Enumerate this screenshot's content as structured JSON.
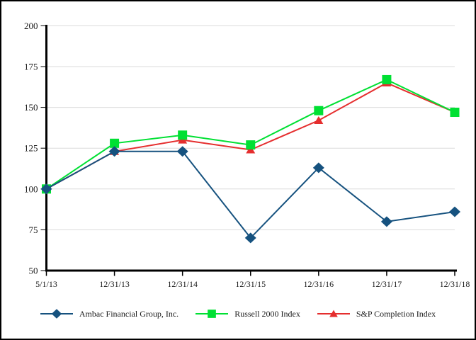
{
  "chart_data": {
    "type": "line",
    "title": "",
    "categories": [
      "5/1/13",
      "12/31/13",
      "12/31/14",
      "12/31/15",
      "12/31/16",
      "12/31/17",
      "12/31/18"
    ],
    "series": [
      {
        "name": "Ambac Financial Group, Inc.",
        "marker": "diamond",
        "color": "#16527F",
        "values": [
          100,
          123,
          123,
          70,
          113,
          80,
          86
        ]
      },
      {
        "name": "Russell 2000 Index",
        "marker": "square",
        "color": "#00E033",
        "values": [
          100,
          128,
          133,
          127,
          148,
          167,
          147
        ]
      },
      {
        "name": "S&P Completion Index",
        "marker": "triangle",
        "color": "#E52E2E",
        "values": [
          100,
          123,
          130,
          124,
          142,
          165,
          147
        ]
      }
    ],
    "y_axis": {
      "min": 50,
      "max": 200,
      "step": 25,
      "ticks": [
        50,
        75,
        100,
        125,
        150,
        175,
        200
      ]
    },
    "x_axis": {
      "label": ""
    },
    "grid": true,
    "legend_position": "bottom",
    "style": {
      "axis_color": "#000000",
      "grid_color": "#DBDBDB",
      "label_color": "#1a1a1a",
      "background": "#ffffff",
      "border_color": "#000000"
    }
  }
}
